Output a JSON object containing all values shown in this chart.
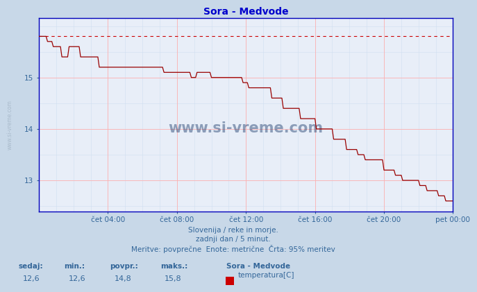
{
  "title": "Sora - Medvode",
  "title_color": "#0000cc",
  "bg_color": "#c8d8e8",
  "plot_bg_color": "#e8eef8",
  "grid_color_major": "#ffb0b0",
  "grid_color_minor": "#d0dff0",
  "line_color": "#990000",
  "dashed_line_color": "#cc0000",
  "dashed_line_y": 15.8,
  "y_min": 12.4,
  "y_max": 16.15,
  "y_ticks": [
    13,
    14,
    15
  ],
  "x_tick_labels": [
    "čet 04:00",
    "čet 08:00",
    "čet 12:00",
    "čet 16:00",
    "čet 20:00",
    "pet 00:00"
  ],
  "x_tick_positions": [
    48,
    96,
    144,
    192,
    240,
    288
  ],
  "total_points": 289,
  "footer_line1": "Slovenija / reke in morje.",
  "footer_line2": "zadnji dan / 5 minut.",
  "footer_line3": "Meritve: povprečne  Enote: metrične  Črta: 95% meritev",
  "footer_color": "#336699",
  "stats_labels": [
    "sedaj:",
    "min.:",
    "povpr.:",
    "maks.:"
  ],
  "stats_values": [
    "12,6",
    "12,6",
    "14,8",
    "15,8"
  ],
  "legend_title": "Sora - Medvode",
  "legend_label": "temperatura[C]",
  "legend_color": "#cc0000",
  "watermark": "www.si-vreme.com",
  "watermark_color": "#1a3a6a",
  "watermark_alpha": 0.45,
  "left_label": "www.si-vreme.com",
  "left_label_color": "#aabbcc"
}
